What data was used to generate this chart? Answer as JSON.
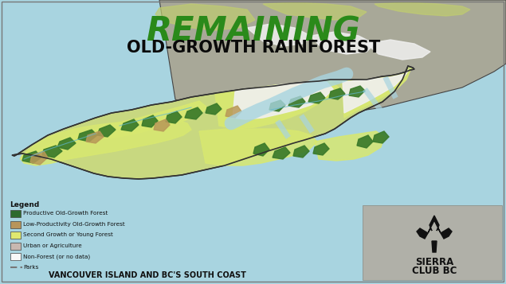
{
  "title_line1": "REMAINING",
  "title_line2": "OLD-GROWTH RAINFOREST",
  "subtitle": "VANCOUVER ISLAND AND BC'S SOUTH COAST",
  "background_color": "#a8d4e0",
  "title1_color": "#2a8a1a",
  "title2_color": "#0a0a0a",
  "subtitle_color": "#111111",
  "legend_title": "Legend",
  "legend_items": [
    {
      "label": "Productive Old-Growth Forest",
      "color": "#2d6a2d"
    },
    {
      "label": "Low-Productivity Old-Growth Forest",
      "color": "#b8955a"
    },
    {
      "label": "Second Growth or Young Forest",
      "color": "#e0e870"
    },
    {
      "label": "Urban or Agriculture",
      "color": "#c8b8b0"
    },
    {
      "label": "Non-Forest (or no data)",
      "color": "#f8f8f8"
    },
    {
      "label": "Parks",
      "color": "#888888",
      "line": true
    }
  ],
  "sierra_text_line1": "SIERRA",
  "sierra_text_line2": "CLUB BC",
  "mainland_color": "#a8a898",
  "island_base_color": "#c8d880",
  "island_edge_color": "#333333",
  "water_color": "#a8d4e0",
  "young_forest_color": "#d8e870",
  "old_growth_color": "#3a7a2a",
  "non_forest_color": "#f0f0f0",
  "figsize": [
    6.35,
    3.57
  ],
  "dpi": 100
}
